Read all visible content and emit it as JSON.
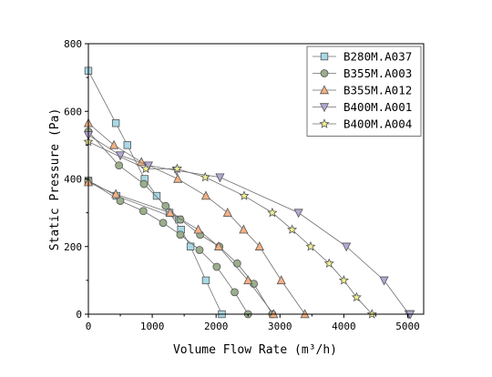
{
  "chart_data": {
    "type": "line",
    "xlabel": "Volume Flow Rate (m³/h)",
    "ylabel": "Static Pressure (Pa)",
    "xlim": [
      0,
      5250
    ],
    "ylim": [
      0,
      800
    ],
    "xticks": [
      0,
      1000,
      2000,
      3000,
      4000,
      5000
    ],
    "yticks": [
      0,
      200,
      400,
      600,
      800
    ],
    "grid": false,
    "legend_position": "top-right",
    "series": [
      {
        "name": "B280M.A037",
        "marker": "square",
        "color": "#a8d8e6",
        "points": [
          [
            0,
            720
          ],
          [
            430,
            565
          ],
          [
            610,
            500
          ],
          [
            880,
            400
          ],
          [
            1070,
            350
          ],
          [
            1270,
            300
          ],
          [
            1450,
            250
          ],
          [
            1600,
            200
          ],
          [
            1840,
            100
          ],
          [
            2090,
            0
          ]
        ],
        "hollow_points": [
          [
            0,
            395
          ],
          [
            440,
            350
          ],
          [
            1420,
            280
          ]
        ]
      },
      {
        "name": "B355M.A003",
        "marker": "circle",
        "color": "#9aae8c",
        "points": [
          [
            0,
            395
          ],
          [
            500,
            335
          ],
          [
            860,
            305
          ],
          [
            1170,
            270
          ],
          [
            1440,
            235
          ],
          [
            1740,
            190
          ],
          [
            2010,
            140
          ],
          [
            2290,
            65
          ],
          [
            2500,
            0
          ]
        ],
        "hollow_points": [
          [
            0,
            540
          ],
          [
            480,
            440
          ],
          [
            870,
            385
          ],
          [
            1210,
            320
          ],
          [
            1440,
            280
          ],
          [
            1750,
            235
          ],
          [
            2050,
            200
          ],
          [
            2330,
            150
          ],
          [
            2590,
            90
          ],
          [
            2880,
            0
          ]
        ]
      },
      {
        "name": "B355M.A012",
        "marker": "triangle-up",
        "color": "#f4b183",
        "points": [
          [
            0,
            565
          ],
          [
            400,
            500
          ],
          [
            830,
            450
          ],
          [
            1400,
            400
          ],
          [
            1840,
            350
          ],
          [
            2180,
            300
          ],
          [
            2430,
            250
          ],
          [
            2680,
            200
          ],
          [
            3020,
            100
          ],
          [
            3390,
            0
          ]
        ],
        "hollow_points": [
          [
            0,
            390
          ],
          [
            430,
            355
          ],
          [
            1280,
            300
          ],
          [
            1720,
            250
          ],
          [
            2040,
            200
          ],
          [
            2500,
            100
          ],
          [
            2900,
            0
          ]
        ]
      },
      {
        "name": "B400M.A001",
        "marker": "triangle-down",
        "color": "#b4a7d6",
        "points": [
          [
            0,
            530
          ],
          [
            500,
            470
          ],
          [
            940,
            440
          ],
          [
            1380,
            425
          ],
          [
            2060,
            405
          ],
          [
            3290,
            300
          ],
          [
            4040,
            200
          ],
          [
            4630,
            100
          ],
          [
            5020,
            0
          ]
        ],
        "hollow_points": [
          [
            5040,
            0
          ]
        ]
      },
      {
        "name": "B400M.A004",
        "marker": "star",
        "color": "#f0f090",
        "points": [
          [
            0,
            510
          ],
          [
            900,
            430
          ],
          [
            1390,
            430
          ],
          [
            1830,
            405
          ],
          [
            2440,
            350
          ],
          [
            2880,
            300
          ],
          [
            3190,
            250
          ],
          [
            3480,
            200
          ],
          [
            3770,
            150
          ],
          [
            4000,
            100
          ],
          [
            4200,
            50
          ],
          [
            4440,
            0
          ]
        ],
        "hollow_points": []
      }
    ]
  }
}
